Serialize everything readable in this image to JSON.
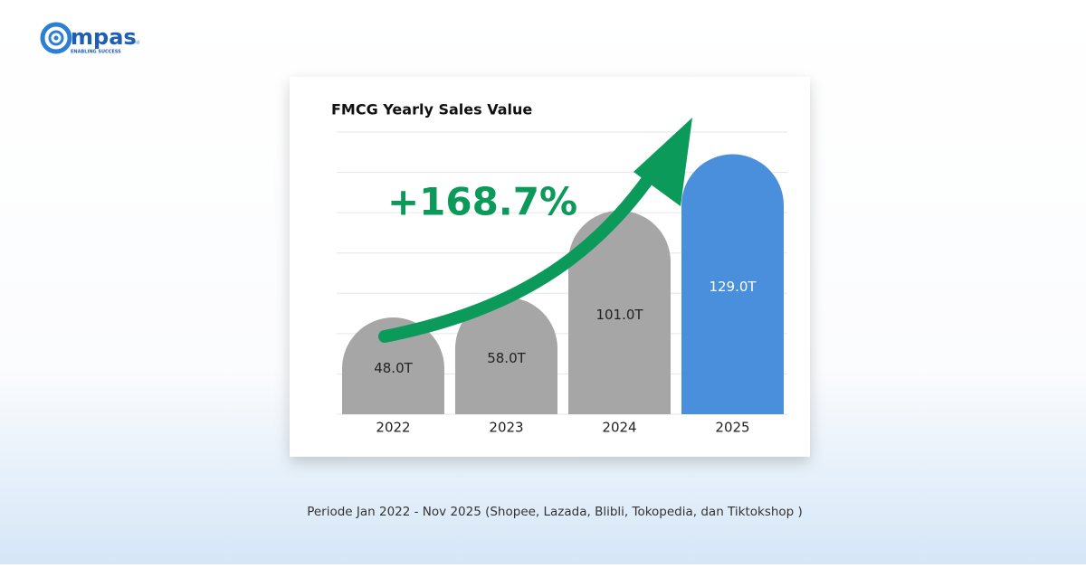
{
  "logo": {
    "name": "mpas",
    "domain": "co.id",
    "tagline": "ENABLING SUCCESS"
  },
  "chart_data": {
    "type": "bar",
    "title": "FMCG Yearly Sales Value",
    "categories": [
      "2022",
      "2023",
      "2024",
      "2025"
    ],
    "values": [
      48.0,
      58.0,
      101.0,
      129.0
    ],
    "value_labels": [
      "48.0T",
      "58.0T",
      "101.0T",
      "129.0T"
    ],
    "colors": [
      "#a6a6a6",
      "#a6a6a6",
      "#a6a6a6",
      "#4a8fdb"
    ],
    "label_colors": [
      "#222222",
      "#222222",
      "#222222",
      "#ffffff"
    ],
    "ylim": [
      0,
      140
    ],
    "yticks": [
      0,
      20,
      40,
      60,
      80,
      100,
      120,
      140
    ],
    "grid": true,
    "annotation": "+168.7%"
  },
  "footnote": "Periode Jan 2022 - Nov 2025 (Shopee, Lazada, Blibli, Tokopedia, dan Tiktokshop )"
}
